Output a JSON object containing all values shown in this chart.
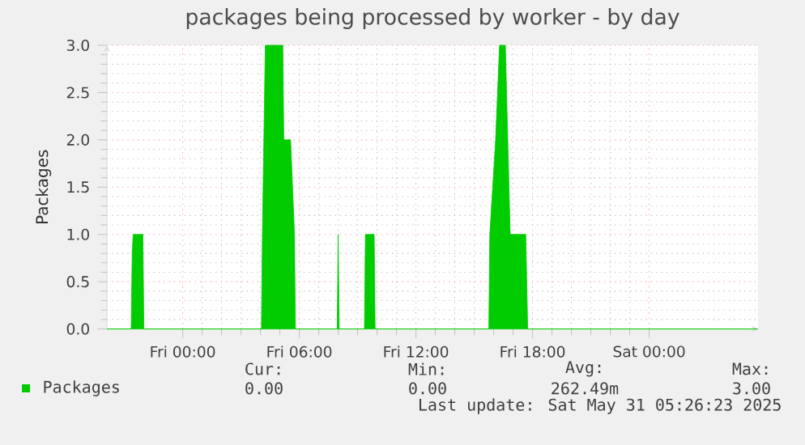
{
  "chart_data": {
    "type": "area",
    "title": "packages being processed by worker - by day",
    "ylabel": "Packages",
    "x": [
      "2025-05-29T20:06",
      "2025-05-29T21:21",
      "2025-05-29T21:24",
      "2025-05-29T21:27",
      "2025-05-29T21:57",
      "2025-05-29T22:00",
      "2025-05-30T04:03",
      "2025-05-30T04:06",
      "2025-05-30T04:15",
      "2025-05-30T05:09",
      "2025-05-30T05:12",
      "2025-05-30T05:33",
      "2025-05-30T05:45",
      "2025-05-30T05:48",
      "2025-05-30T07:57",
      "2025-05-30T08:00",
      "2025-05-30T08:03",
      "2025-05-30T09:21",
      "2025-05-30T09:24",
      "2025-05-30T09:51",
      "2025-05-30T09:54",
      "2025-05-30T15:45",
      "2025-05-30T15:48",
      "2025-05-30T16:06",
      "2025-05-30T16:18",
      "2025-05-30T16:36",
      "2025-05-30T16:51",
      "2025-05-30T17:39",
      "2025-05-30T17:45",
      "2025-05-31T05:36"
    ],
    "series": [
      {
        "name": "Packages",
        "color": "#00cc00",
        "values": [
          0,
          0,
          0.8,
          1.0,
          1.0,
          0,
          0,
          1.0,
          3.0,
          3.0,
          2.0,
          2.0,
          1.0,
          0,
          0,
          1.0,
          0,
          0,
          1.0,
          1.0,
          0,
          0,
          1.0,
          2.0,
          3.0,
          3.0,
          1.0,
          1.0,
          0,
          0
        ]
      }
    ],
    "xlim": [
      "2025-05-29T20:06",
      "2025-05-31T05:36"
    ],
    "xticks": [
      {
        "value": "2025-05-30T00:00",
        "label": "Fri 00:00"
      },
      {
        "value": "2025-05-30T06:00",
        "label": "Fri 06:00"
      },
      {
        "value": "2025-05-30T12:00",
        "label": "Fri 12:00"
      },
      {
        "value": "2025-05-30T18:00",
        "label": "Fri 18:00"
      },
      {
        "value": "2025-05-31T00:00",
        "label": "Sat 00:00"
      }
    ],
    "ylim": [
      0,
      3.0
    ],
    "yticks": [
      {
        "value": 0,
        "label": "0.0"
      },
      {
        "value": 0.5,
        "label": "0.5"
      },
      {
        "value": 1.0,
        "label": "1.0"
      },
      {
        "value": 1.5,
        "label": "1.5"
      },
      {
        "value": 2.0,
        "label": "2.0"
      },
      {
        "value": 2.5,
        "label": "2.5"
      },
      {
        "value": 3.0,
        "label": "3.0"
      }
    ],
    "grid": true,
    "legend": "bottom left",
    "annotations": [
      "Cur:",
      "0.00",
      "Min:",
      "0.00",
      "Avg:",
      "262.49m",
      "Max:",
      "3.00",
      "Last update: Sat May 31 05:26:23 2025"
    ]
  }
}
